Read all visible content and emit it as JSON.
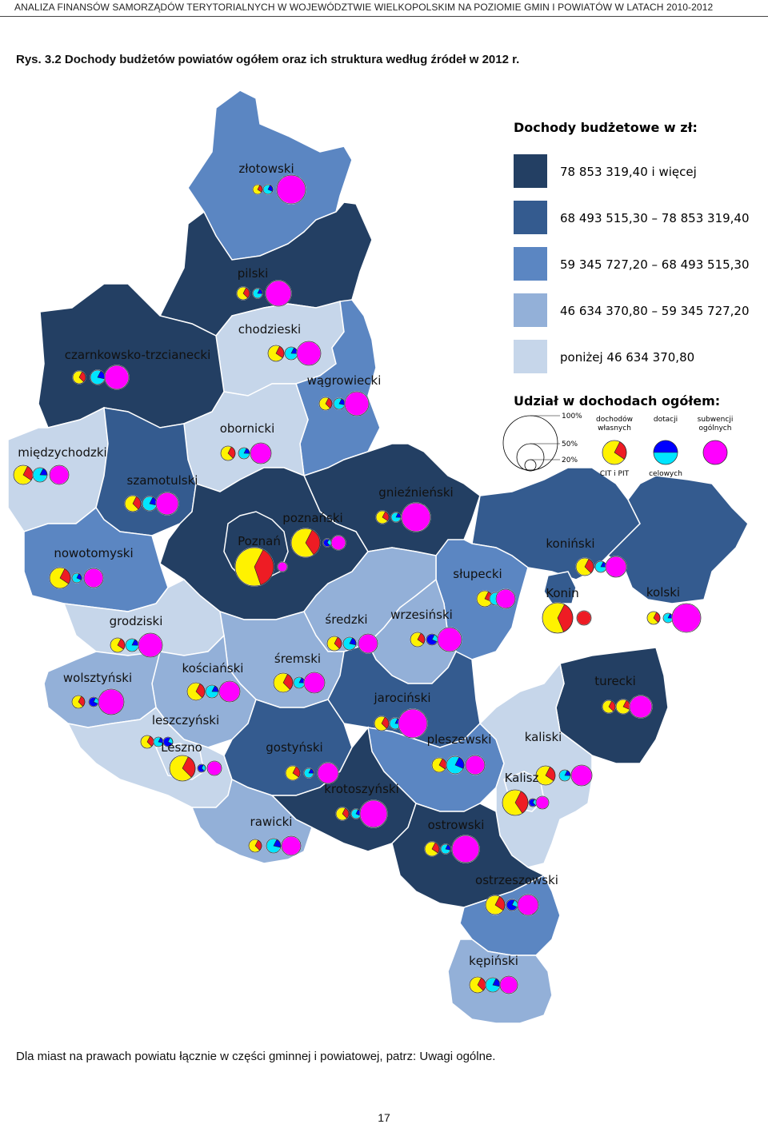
{
  "header": {
    "running_title": "ANALIZA FINANSÓW SAMORZĄDÓW TERYTORIALNYCH W WOJEWÓDZTWIE WIELKOPOLSKIM NA POZIOMIE GMIN I POWIATÓW W LATACH 2010-2012"
  },
  "figure": {
    "title": "Rys. 3.2  Dochody budżetów powiatów ogółem oraz ich struktura według źródeł w 2012 r."
  },
  "colors": {
    "class_1": "#233f63",
    "class_2": "#345b8f",
    "class_3": "#5b86c2",
    "class_4": "#93b0d8",
    "class_5": "#c6d6ea",
    "own_revenue": "#fff200",
    "cit_pit": "#ee1c24",
    "grants": "#0000ff",
    "targeted": "#00e5ff",
    "subsidies": "#ff00ff",
    "border": "#ffffff"
  },
  "legend": {
    "income_title": "Dochody budżetowe w zł:",
    "classes": [
      {
        "label": "78 853 319,40 i więcej",
        "color": "#233f63"
      },
      {
        "label": "68 493 515,30 – 78 853 319,40",
        "color": "#345b8f"
      },
      {
        "label": "59 345 727,20 – 68 493 515,30",
        "color": "#5b86c2"
      },
      {
        "label": "46 634 370,80 – 59 345 727,20",
        "color": "#93b0d8"
      },
      {
        "label": "poniżej 46 634 370,80",
        "color": "#c6d6ea"
      }
    ],
    "share_title": "Udział w dochodach ogółem:",
    "scale_labels": [
      "100%",
      "50%",
      "20%"
    ],
    "components": [
      {
        "top": [
          "dochodów",
          "własnych"
        ],
        "bottom": "CIT i PIT",
        "icon": "own-revenue"
      },
      {
        "top": [
          "dotacji"
        ],
        "bottom": "celowych",
        "icon": "grants"
      },
      {
        "top": [
          "subwencji",
          "ogólnych"
        ],
        "bottom": "",
        "icon": "subsidies"
      }
    ]
  },
  "powiaty": [
    {
      "name": "złotowski",
      "income_class": 3
    },
    {
      "name": "pilski",
      "income_class": 1
    },
    {
      "name": "chodzieski",
      "income_class": 5
    },
    {
      "name": "czarnkowsko-trzcianecki",
      "income_class": 1
    },
    {
      "name": "wągrowiecki",
      "income_class": 3
    },
    {
      "name": "obornicki",
      "income_class": 5
    },
    {
      "name": "międzychodzki",
      "income_class": 5
    },
    {
      "name": "szamotulski",
      "income_class": 2
    },
    {
      "name": "gnieźnieński",
      "income_class": 1
    },
    {
      "name": "poznański",
      "income_class": 1
    },
    {
      "name": "Poznań",
      "income_class": 1
    },
    {
      "name": "nowotomyski",
      "income_class": 3
    },
    {
      "name": "koniński",
      "income_class": 2
    },
    {
      "name": "słupecki",
      "income_class": 3
    },
    {
      "name": "Konin",
      "income_class": 2
    },
    {
      "name": "kolski",
      "income_class": 2
    },
    {
      "name": "grodziski",
      "income_class": 5
    },
    {
      "name": "średzki",
      "income_class": 4
    },
    {
      "name": "wrzesiński",
      "income_class": 4
    },
    {
      "name": "śremski",
      "income_class": 4
    },
    {
      "name": "kościański",
      "income_class": 4
    },
    {
      "name": "wolsztyński",
      "income_class": 4
    },
    {
      "name": "turecki",
      "income_class": 1
    },
    {
      "name": "jarociński",
      "income_class": 2
    },
    {
      "name": "leszczyński",
      "income_class": 5
    },
    {
      "name": "Leszno",
      "income_class": 5
    },
    {
      "name": "gostyński",
      "income_class": 2
    },
    {
      "name": "pleszewski",
      "income_class": 3
    },
    {
      "name": "kaliski",
      "income_class": 5
    },
    {
      "name": "Kalisz",
      "income_class": 5
    },
    {
      "name": "krotoszyński",
      "income_class": 1
    },
    {
      "name": "rawicki",
      "income_class": 4
    },
    {
      "name": "ostrowski",
      "income_class": 1
    },
    {
      "name": "ostrzeszowski",
      "income_class": 3
    },
    {
      "name": "kępiński",
      "income_class": 4
    }
  ],
  "footnote": "Dla miast na prawach powiatu łącznie w części gminnej i powiatowej, patrz: Uwagi ogólne.",
  "page_number": "17"
}
